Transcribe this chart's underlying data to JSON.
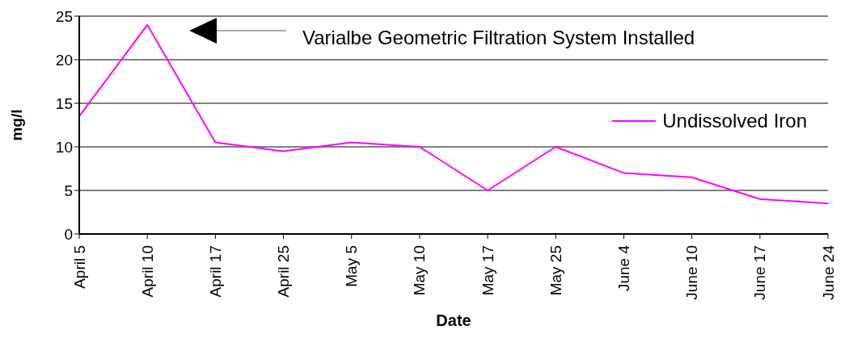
{
  "chart_data": {
    "type": "line",
    "xlabel": "Date",
    "ylabel": "mg/l",
    "categories": [
      "April 5",
      "April 10",
      "April 17",
      "April 25",
      "May 5",
      "May 10",
      "May 17",
      "May 25",
      "June 4",
      "June 10",
      "June 17",
      "June 24"
    ],
    "series": [
      {
        "name": "Undissolved Iron",
        "color": "#ff00ff",
        "values": [
          13.5,
          24,
          10.5,
          9.5,
          10.5,
          10,
          5,
          10,
          7,
          6.5,
          4,
          3.5
        ]
      }
    ],
    "ylim": [
      0,
      25
    ],
    "yticks": [
      0,
      5,
      10,
      15,
      20,
      25
    ],
    "grid": "y",
    "legend": "right",
    "marker": "none",
    "line_style": "solid",
    "annotations": [
      "Varialbe Geometric Filtration System Installed"
    ]
  }
}
